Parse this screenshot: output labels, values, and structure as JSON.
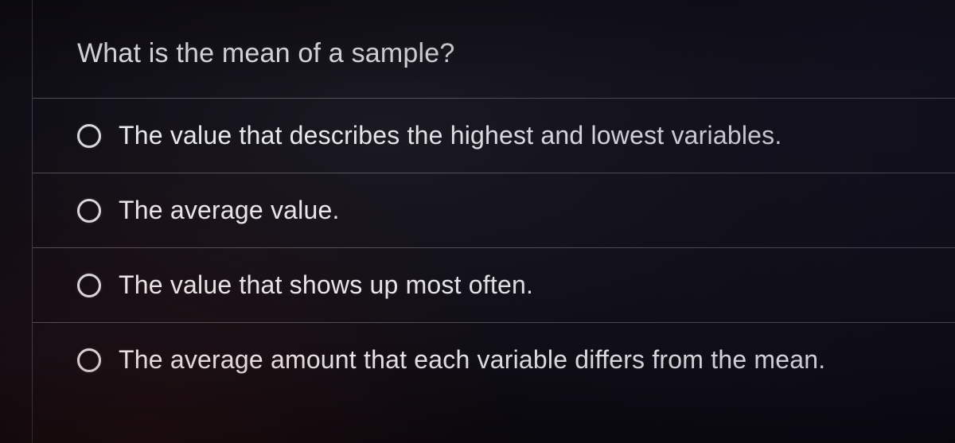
{
  "quiz": {
    "question": "What is the mean of a sample?",
    "question_fontsize": 34,
    "option_fontsize": 32,
    "text_color": "#e8e8ec",
    "radio_border_color": "#d8d8de",
    "divider_color": "rgba(200,200,210,0.35)",
    "background_gradient": {
      "type": "radial",
      "stops": [
        "#1a1820",
        "#0f0d14",
        "#0a0810"
      ]
    },
    "options": [
      {
        "label": "The value that describes the highest and lowest variables.",
        "selected": false
      },
      {
        "label": "The average value.",
        "selected": false
      },
      {
        "label": "The value that shows up most often.",
        "selected": false
      },
      {
        "label": "The average amount that each variable differs from the mean.",
        "selected": false
      }
    ]
  }
}
